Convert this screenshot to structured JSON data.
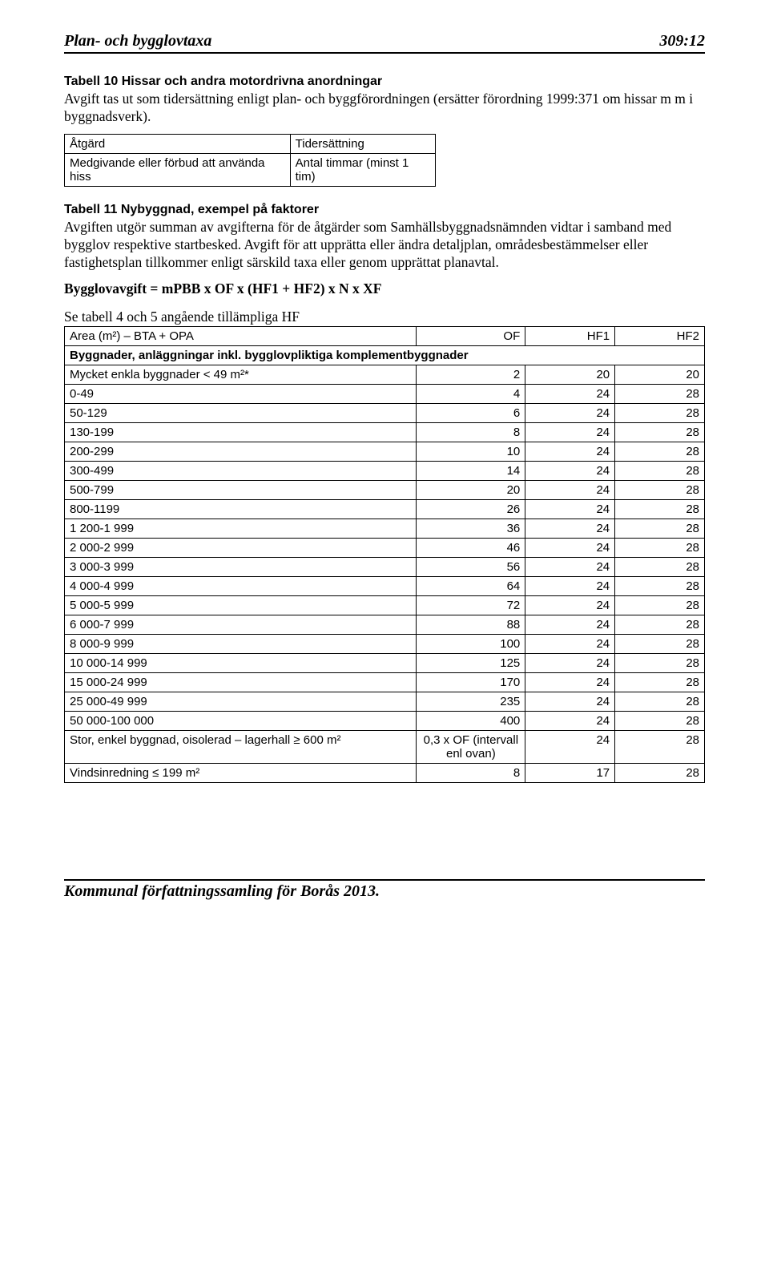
{
  "header": {
    "title": "Plan- och bygglovtaxa",
    "page_ref": "309:12"
  },
  "section10": {
    "title": "Tabell 10 Hissar och andra motordrivna anordningar",
    "intro": "Avgift tas ut som tidersättning enligt plan- och byggförordningen (ersätter förordning 1999:371 om hissar m m i byggnadsverk).",
    "table": {
      "col1_header": "Åtgärd",
      "col2_header": "Tidersättning",
      "row1_col1": "Medgivande eller förbud att använda hiss",
      "row1_col2": "Antal timmar (minst 1 tim)"
    }
  },
  "section11": {
    "title": "Tabell 11 Nybyggnad, exempel på faktorer",
    "intro": "Avgiften utgör summan av avgifterna för de åtgärder som Samhällsbyggnadsnämnden vidtar i samband med bygglov respektive startbesked. Avgift för att upprätta eller ändra detaljplan, områdesbestämmelser eller fastighetsplan tillkommer enligt särskild taxa eller genom upprättat planavtal.",
    "formula": "Bygglovavgift = mPBB x OF x (HF1 + HF2) x N x XF",
    "sub_caption": "Se tabell 4 och 5 angående tillämpliga HF",
    "table": {
      "head_area": "Area (m²) – BTA + OPA",
      "head_of": "OF",
      "head_hf1": "HF1",
      "head_hf2": "HF2",
      "section_header": "Byggnader, anläggningar inkl. bygglovpliktiga komplementbyggnader",
      "rows": [
        {
          "label": "Mycket enkla byggnader < 49 m²*",
          "of": "2",
          "hf1": "20",
          "hf2": "20"
        },
        {
          "label": "0-49",
          "of": "4",
          "hf1": "24",
          "hf2": "28"
        },
        {
          "label": "50-129",
          "of": "6",
          "hf1": "24",
          "hf2": "28"
        },
        {
          "label": "130-199",
          "of": "8",
          "hf1": "24",
          "hf2": "28"
        },
        {
          "label": "200-299",
          "of": "10",
          "hf1": "24",
          "hf2": "28"
        },
        {
          "label": "300-499",
          "of": "14",
          "hf1": "24",
          "hf2": "28"
        },
        {
          "label": "500-799",
          "of": "20",
          "hf1": "24",
          "hf2": "28"
        },
        {
          "label": "800-1199",
          "of": "26",
          "hf1": "24",
          "hf2": "28"
        },
        {
          "label": "1 200-1 999",
          "of": "36",
          "hf1": "24",
          "hf2": "28"
        },
        {
          "label": "2 000-2 999",
          "of": "46",
          "hf1": "24",
          "hf2": "28"
        },
        {
          "label": "3 000-3 999",
          "of": "56",
          "hf1": "24",
          "hf2": "28"
        },
        {
          "label": "4 000-4 999",
          "of": "64",
          "hf1": "24",
          "hf2": "28"
        },
        {
          "label": "5 000-5 999",
          "of": "72",
          "hf1": "24",
          "hf2": "28"
        },
        {
          "label": "6 000-7 999",
          "of": "88",
          "hf1": "24",
          "hf2": "28"
        },
        {
          "label": "8 000-9 999",
          "of": "100",
          "hf1": "24",
          "hf2": "28"
        },
        {
          "label": "10 000-14 999",
          "of": "125",
          "hf1": "24",
          "hf2": "28"
        },
        {
          "label": "15 000-24 999",
          "of": "170",
          "hf1": "24",
          "hf2": "28"
        },
        {
          "label": "25 000-49 999",
          "of": "235",
          "hf1": "24",
          "hf2": "28"
        },
        {
          "label": "50 000-100 000",
          "of": "400",
          "hf1": "24",
          "hf2": "28"
        }
      ],
      "special_row1": {
        "label": "Stor, enkel byggnad, oisolerad – lagerhall ≥ 600 m²",
        "of": "0,3 x OF (intervall enl ovan)",
        "hf1": "24",
        "hf2": "28"
      },
      "special_row2": {
        "label": "Vindsinredning ≤ 199 m²",
        "of": "8",
        "hf1": "17",
        "hf2": "28"
      }
    }
  },
  "footer": {
    "text": "Kommunal författningssamling för Borås 2013."
  }
}
